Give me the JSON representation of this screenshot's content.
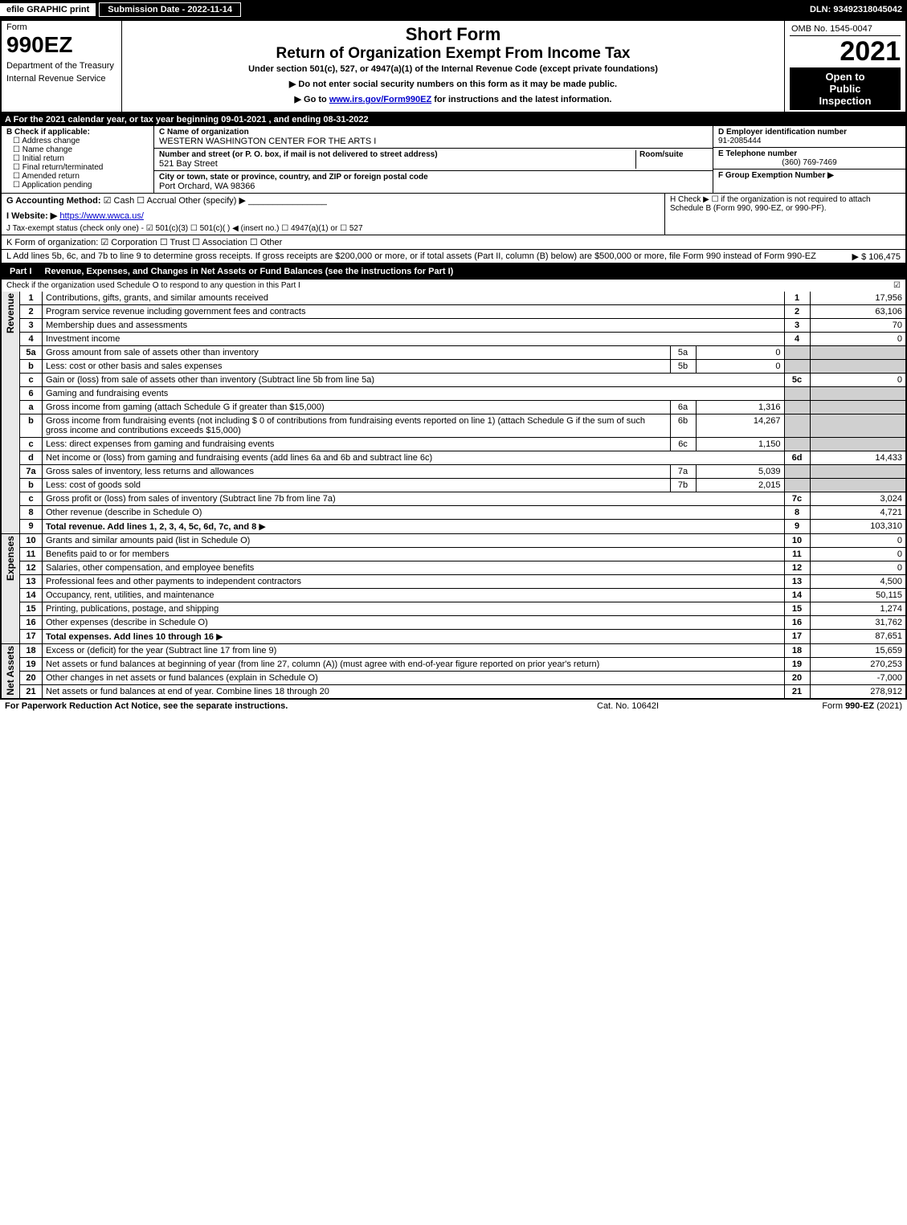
{
  "top": {
    "efile": "efile GRAPHIC print",
    "sub_date": "Submission Date - 2022-11-14",
    "dln": "DLN: 93492318045042"
  },
  "header": {
    "form_word": "Form",
    "form_no": "990EZ",
    "dept": "Department of the Treasury",
    "irs": "Internal Revenue Service",
    "title1": "Short Form",
    "title2": "Return of Organization Exempt From Income Tax",
    "subtitle": "Under section 501(c), 527, or 4947(a)(1) of the Internal Revenue Code (except private foundations)",
    "note1": "▶ Do not enter social security numbers on this form as it may be made public.",
    "note2": "▶ Go to www.irs.gov/Form990EZ for instructions and the latest information.",
    "omb": "OMB No. 1545-0047",
    "year": "2021",
    "insp1": "Open to",
    "insp2": "Public",
    "insp3": "Inspection"
  },
  "rowA": {
    "label": "A",
    "text": "For the 2021 calendar year, or tax year beginning 09-01-2021 , and ending 08-31-2022"
  },
  "B": {
    "head": "B  Check if applicable:",
    "items": [
      "Address change",
      "Name change",
      "Initial return",
      "Final return/terminated",
      "Amended return",
      "Application pending"
    ]
  },
  "C": {
    "name_lab": "C Name of organization",
    "name": "WESTERN WASHINGTON CENTER FOR THE ARTS I",
    "addr_lab": "Number and street (or P. O. box, if mail is not delivered to street address)",
    "room_lab": "Room/suite",
    "addr": "521 Bay Street",
    "city_lab": "City or town, state or province, country, and ZIP or foreign postal code",
    "city": "Port Orchard, WA  98366"
  },
  "D": {
    "lab": "D Employer identification number",
    "val": "91-2085444"
  },
  "E": {
    "lab": "E Telephone number",
    "val": "(360) 769-7469"
  },
  "F": {
    "lab": "F Group Exemption Number  ▶"
  },
  "G": {
    "lab": "G Accounting Method:",
    "cash": "Cash",
    "accrual": "Accrual",
    "other": "Other (specify) ▶"
  },
  "H": {
    "text": "H  Check ▶ ☐ if the organization is not required to attach Schedule B (Form 990, 990-EZ, or 990-PF)."
  },
  "I": {
    "lab": "I Website: ▶",
    "url": "https://www.wwca.us/"
  },
  "J": {
    "text": "J Tax-exempt status (check only one) - ☑ 501(c)(3)  ☐ 501(c)(  ) ◀ (insert no.)  ☐ 4947(a)(1) or  ☐ 527"
  },
  "K": {
    "text": "K Form of organization:  ☑ Corporation  ☐ Trust  ☐ Association  ☐ Other"
  },
  "L": {
    "text": "L Add lines 5b, 6c, and 7b to line 9 to determine gross receipts. If gross receipts are $200,000 or more, or if total assets (Part II, column (B) below) are $500,000 or more, file Form 990 instead of Form 990-EZ",
    "val": "▶ $ 106,475"
  },
  "part1": {
    "label": "Part I",
    "title": "Revenue, Expenses, and Changes in Net Assets or Fund Balances (see the instructions for Part I)",
    "sub": "Check if the organization used Schedule O to respond to any question in this Part I",
    "check": "☑"
  },
  "sides": {
    "rev": "Revenue",
    "exp": "Expenses",
    "net": "Net Assets"
  },
  "rev": [
    {
      "n": "1",
      "d": "Contributions, gifts, grants, and similar amounts received",
      "rn": "1",
      "v": "17,956"
    },
    {
      "n": "2",
      "d": "Program service revenue including government fees and contracts",
      "rn": "2",
      "v": "63,106"
    },
    {
      "n": "3",
      "d": "Membership dues and assessments",
      "rn": "3",
      "v": "70"
    },
    {
      "n": "4",
      "d": "Investment income",
      "rn": "4",
      "v": "0"
    },
    {
      "n": "5a",
      "d": "Gross amount from sale of assets other than inventory",
      "sn": "5a",
      "sv": "0"
    },
    {
      "n": "b",
      "d": "Less: cost or other basis and sales expenses",
      "sn": "5b",
      "sv": "0"
    },
    {
      "n": "c",
      "d": "Gain or (loss) from sale of assets other than inventory (Subtract line 5b from line 5a)",
      "rn": "5c",
      "v": "0"
    },
    {
      "n": "6",
      "d": "Gaming and fundraising events"
    },
    {
      "n": "a",
      "d": "Gross income from gaming (attach Schedule G if greater than $15,000)",
      "sn": "6a",
      "sv": "1,316"
    },
    {
      "n": "b",
      "d": "Gross income from fundraising events (not including $ 0 of contributions from fundraising events reported on line 1) (attach Schedule G if the sum of such gross income and contributions exceeds $15,000)",
      "sn": "6b",
      "sv": "14,267"
    },
    {
      "n": "c",
      "d": "Less: direct expenses from gaming and fundraising events",
      "sn": "6c",
      "sv": "1,150"
    },
    {
      "n": "d",
      "d": "Net income or (loss) from gaming and fundraising events (add lines 6a and 6b and subtract line 6c)",
      "rn": "6d",
      "v": "14,433"
    },
    {
      "n": "7a",
      "d": "Gross sales of inventory, less returns and allowances",
      "sn": "7a",
      "sv": "5,039"
    },
    {
      "n": "b",
      "d": "Less: cost of goods sold",
      "sn": "7b",
      "sv": "2,015"
    },
    {
      "n": "c",
      "d": "Gross profit or (loss) from sales of inventory (Subtract line 7b from line 7a)",
      "rn": "7c",
      "v": "3,024"
    },
    {
      "n": "8",
      "d": "Other revenue (describe in Schedule O)",
      "rn": "8",
      "v": "4,721"
    },
    {
      "n": "9",
      "d": "Total revenue. Add lines 1, 2, 3, 4, 5c, 6d, 7c, and 8",
      "rn": "9",
      "v": "103,310",
      "bold": true
    }
  ],
  "exp": [
    {
      "n": "10",
      "d": "Grants and similar amounts paid (list in Schedule O)",
      "rn": "10",
      "v": "0"
    },
    {
      "n": "11",
      "d": "Benefits paid to or for members",
      "rn": "11",
      "v": "0"
    },
    {
      "n": "12",
      "d": "Salaries, other compensation, and employee benefits",
      "rn": "12",
      "v": "0"
    },
    {
      "n": "13",
      "d": "Professional fees and other payments to independent contractors",
      "rn": "13",
      "v": "4,500"
    },
    {
      "n": "14",
      "d": "Occupancy, rent, utilities, and maintenance",
      "rn": "14",
      "v": "50,115"
    },
    {
      "n": "15",
      "d": "Printing, publications, postage, and shipping",
      "rn": "15",
      "v": "1,274"
    },
    {
      "n": "16",
      "d": "Other expenses (describe in Schedule O)",
      "rn": "16",
      "v": "31,762"
    },
    {
      "n": "17",
      "d": "Total expenses. Add lines 10 through 16",
      "rn": "17",
      "v": "87,651",
      "bold": true
    }
  ],
  "net": [
    {
      "n": "18",
      "d": "Excess or (deficit) for the year (Subtract line 17 from line 9)",
      "rn": "18",
      "v": "15,659"
    },
    {
      "n": "19",
      "d": "Net assets or fund balances at beginning of year (from line 27, column (A)) (must agree with end-of-year figure reported on prior year's return)",
      "rn": "19",
      "v": "270,253"
    },
    {
      "n": "20",
      "d": "Other changes in net assets or fund balances (explain in Schedule O)",
      "rn": "20",
      "v": "-7,000"
    },
    {
      "n": "21",
      "d": "Net assets or fund balances at end of year. Combine lines 18 through 20",
      "rn": "21",
      "v": "278,912"
    }
  ],
  "footer": {
    "l": "For Paperwork Reduction Act Notice, see the separate instructions.",
    "m": "Cat. No. 10642I",
    "r": "Form 990-EZ (2021)"
  }
}
